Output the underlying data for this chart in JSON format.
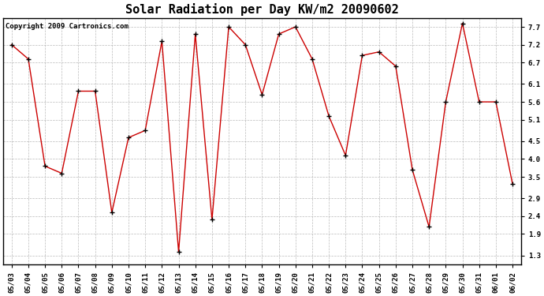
{
  "title": "Solar Radiation per Day KW/m2 20090602",
  "copyright": "Copyright 2009 Cartronics.com",
  "dates": [
    "05/03",
    "05/04",
    "05/05",
    "05/06",
    "05/07",
    "05/08",
    "05/09",
    "05/10",
    "05/11",
    "05/12",
    "05/13",
    "05/14",
    "05/15",
    "05/16",
    "05/17",
    "05/18",
    "05/19",
    "05/20",
    "05/21",
    "05/22",
    "05/23",
    "05/24",
    "05/25",
    "05/26",
    "05/27",
    "05/28",
    "05/29",
    "05/30",
    "05/31",
    "06/01",
    "06/02"
  ],
  "values": [
    7.2,
    6.8,
    3.8,
    3.6,
    5.9,
    5.9,
    2.5,
    4.6,
    4.8,
    7.3,
    1.4,
    7.5,
    2.3,
    7.7,
    7.2,
    5.8,
    7.5,
    7.7,
    6.8,
    5.2,
    4.1,
    6.9,
    7.0,
    6.6,
    3.7,
    2.1,
    5.6,
    7.8,
    5.6,
    5.6,
    3.3
  ],
  "line_color": "#cc0000",
  "marker": "+",
  "marker_color": "#000000",
  "marker_size": 4,
  "marker_lw": 1.0,
  "line_width": 1.0,
  "background_color": "#ffffff",
  "grid_color": "#aaaaaa",
  "yticks": [
    1.3,
    1.9,
    2.4,
    2.9,
    3.5,
    4.0,
    4.5,
    5.1,
    5.6,
    6.1,
    6.7,
    7.2,
    7.7
  ],
  "ylim": [
    1.05,
    7.95
  ],
  "title_fontsize": 11,
  "copyright_fontsize": 6.5,
  "tick_fontsize": 6.5,
  "figwidth": 6.9,
  "figheight": 3.75,
  "dpi": 100
}
